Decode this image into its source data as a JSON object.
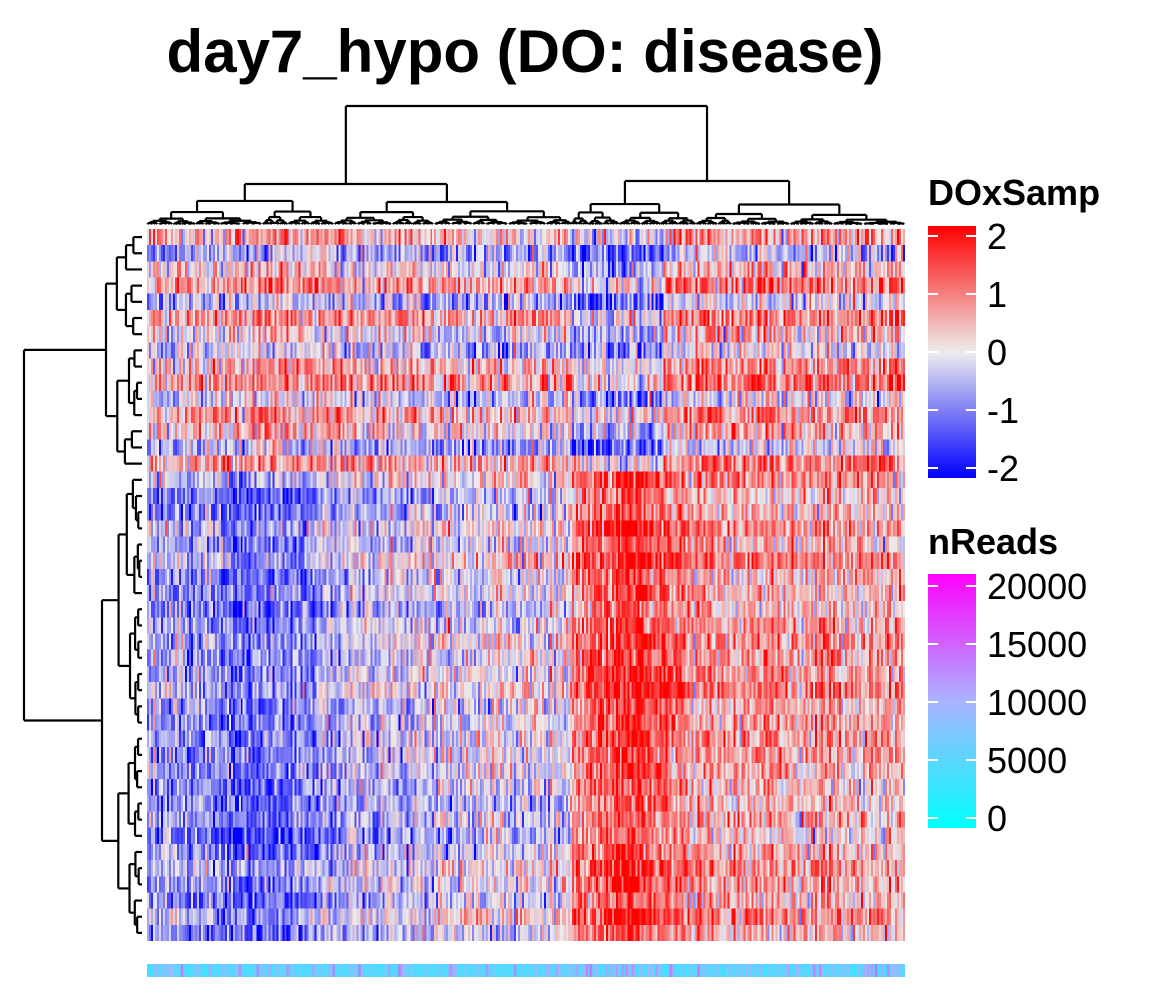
{
  "chart_data": {
    "type": "heatmap",
    "title": "day7_hypo (DO: disease)",
    "n_rows": 44,
    "n_cols": 380,
    "row_cluster_sizes": [
      15,
      29
    ],
    "row_cluster_labels": [
      "top",
      "bottom"
    ],
    "col_cluster_fraction_left": 0.56,
    "color_legend": {
      "title": "DOxSamp",
      "ticks": [
        "2",
        "1",
        "0",
        "-1",
        "-2"
      ],
      "tick_values": [
        2,
        1,
        0,
        -1,
        -2
      ],
      "range": [
        -2,
        2
      ],
      "colors": [
        "#0000ff",
        "#ffffff",
        "#ff0000"
      ]
    },
    "annotation_legend": {
      "title": "nReads",
      "ticks": [
        "20000",
        "15000",
        "10000",
        "5000",
        "0"
      ],
      "tick_values": [
        20000,
        15000,
        10000,
        5000,
        0
      ],
      "range": [
        0,
        20000
      ],
      "colors": [
        "#00ffff",
        "#aab4ff",
        "#ff00ff"
      ]
    },
    "mean_pattern": {
      "top_block": {
        "left_mean": 0.35,
        "right_mean": 0.55,
        "alternating_row_bias": 0.6
      },
      "bottom_block": {
        "left_mean": -0.85,
        "right_mean": 1.3
      }
    }
  }
}
